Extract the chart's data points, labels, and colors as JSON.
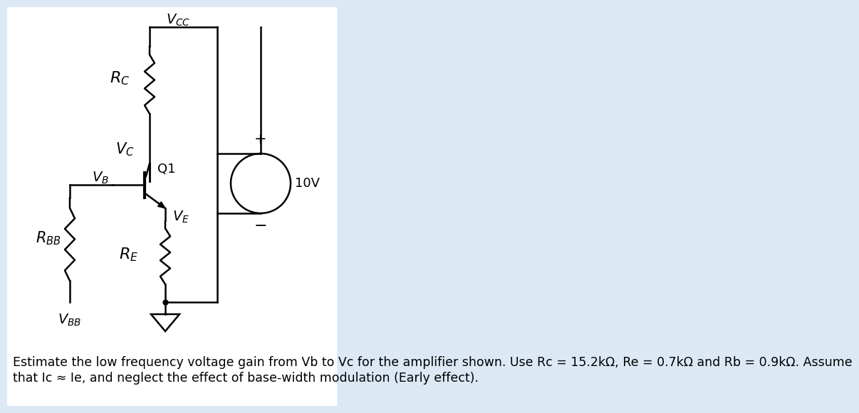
{
  "bg_color": "#dce9f5",
  "circuit_bg": "#ffffff",
  "text_color": "#000000",
  "caption_line1": "Estimate the low frequency voltage gain from Vb to Vc for the amplifier shown. Use Rc = 15.2kΩ, Re = 0.7kΩ and Rb = 0.9kΩ. Assume",
  "caption_line2": "that Ic ≈ Ie, and neglect the effect of base-width modulation (Early effect).",
  "caption_fontsize": 12.5,
  "label_fontsize": 13,
  "lw": 1.8,
  "vcc_label": "$V_{CC}$",
  "rc_label": "$R_C$",
  "vc_label": "$V_C$",
  "vb_label": "$V_B$",
  "ve_label": "$V_E$",
  "re_label": "$R_E$",
  "rbb_label": "$R_{BB}$",
  "vbb_label": "$V_{BB}$",
  "q1_label": "Q1",
  "volt_label": "10V"
}
